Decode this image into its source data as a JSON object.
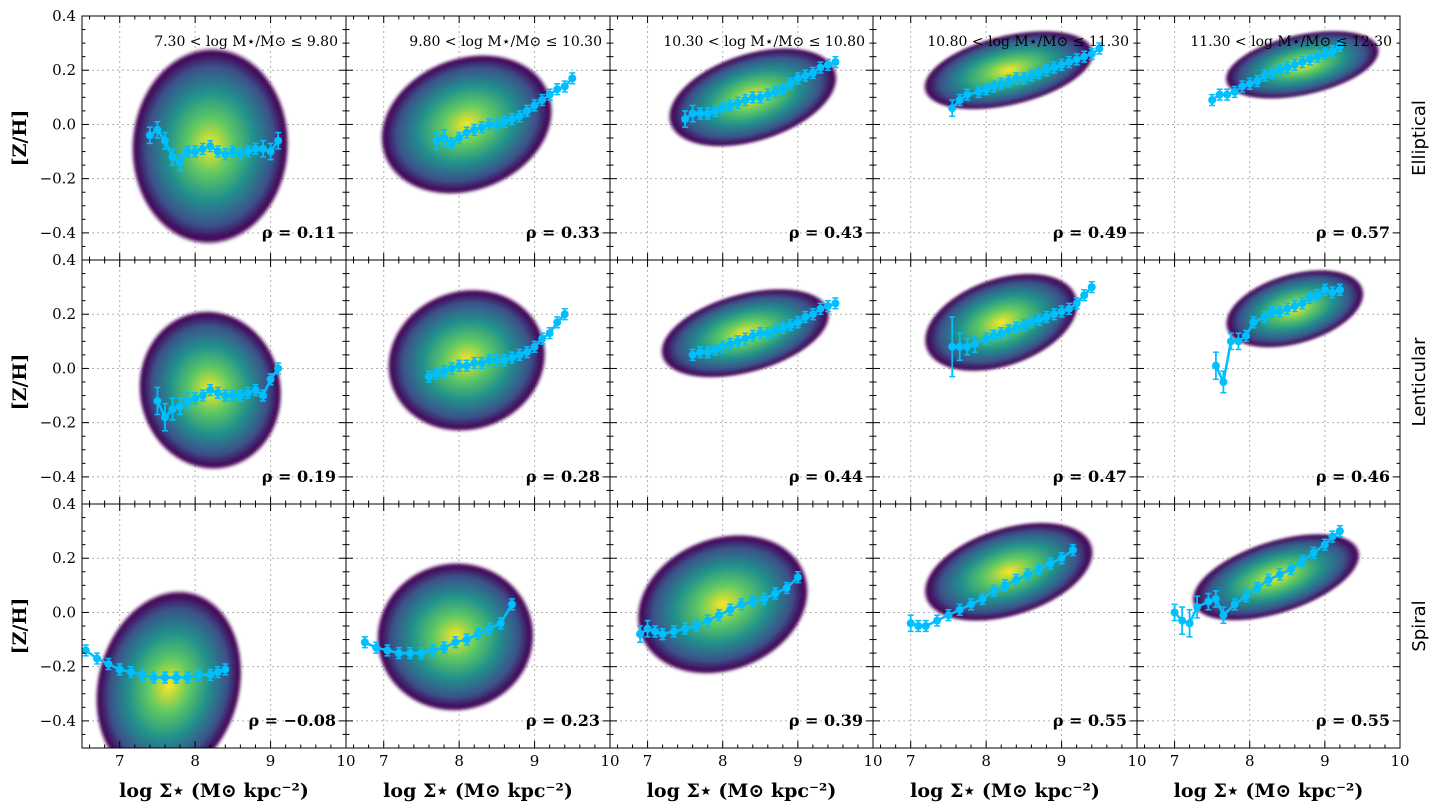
{
  "chart_data": {
    "type": "scatter",
    "figure": {
      "xlabel": "log Σ⋆ (M⊙ kpc⁻²)",
      "ylabel": "[Z/H]",
      "xlim": [
        6.5,
        10
      ],
      "ylim": [
        -0.5,
        0.4
      ],
      "xticks": [
        7,
        8,
        9,
        10
      ],
      "xtick_labels": [
        "7",
        "8",
        "9",
        "10"
      ],
      "yticks": [
        -0.4,
        -0.2,
        0.0,
        0.2,
        0.4
      ],
      "ytick_labels": [
        "−0.4",
        "−0.2",
        "0.0",
        "0.2",
        "0.4"
      ],
      "grid": true,
      "colormap": "viridis",
      "line_color": "#00bfff",
      "density_colors": [
        "#440154",
        "#3b528b",
        "#21918c",
        "#5ec962",
        "#fde725"
      ]
    },
    "mass_bins": [
      "7.30 < log M⋆/M⊙ ≤ 9.80",
      "9.80 < log M⋆/M⊙ ≤ 10.30",
      "10.30 < log M⋆/M⊙ ≤ 10.80",
      "10.80 < log M⋆/M⊙ ≤ 11.30",
      "11.30 < log M⋆/M⊙ ≤ 12.30"
    ],
    "morphologies": [
      "Elliptical",
      "Lenticular",
      "Spiral"
    ],
    "panels": [
      [
        {
          "rho": "ρ = 0.11",
          "density": {
            "cx": 8.2,
            "cy": -0.08,
            "sx": 0.5,
            "sy": 0.16,
            "corr": -0.05
          },
          "x": [
            7.4,
            7.5,
            7.6,
            7.7,
            7.8,
            7.9,
            8.0,
            8.1,
            8.2,
            8.3,
            8.4,
            8.5,
            8.6,
            8.7,
            8.8,
            8.9,
            9.0,
            9.1
          ],
          "y": [
            -0.04,
            -0.02,
            -0.06,
            -0.12,
            -0.14,
            -0.1,
            -0.1,
            -0.09,
            -0.08,
            -0.1,
            -0.11,
            -0.1,
            -0.11,
            -0.1,
            -0.09,
            -0.09,
            -0.1,
            -0.06
          ],
          "err": [
            0.03,
            0.03,
            0.03,
            0.03,
            0.03,
            0.02,
            0.02,
            0.02,
            0.02,
            0.02,
            0.02,
            0.02,
            0.02,
            0.02,
            0.02,
            0.03,
            0.03,
            0.03
          ]
        },
        {
          "rho": "ρ = 0.33",
          "density": {
            "cx": 8.1,
            "cy": 0.0,
            "sx": 0.55,
            "sy": 0.12,
            "corr": 0.5
          },
          "x": [
            7.7,
            7.8,
            7.9,
            8.0,
            8.1,
            8.2,
            8.3,
            8.4,
            8.5,
            8.6,
            8.7,
            8.8,
            8.9,
            9.0,
            9.1,
            9.2,
            9.3,
            9.4,
            9.5
          ],
          "y": [
            -0.06,
            -0.05,
            -0.07,
            -0.05,
            -0.03,
            -0.02,
            -0.01,
            0.0,
            0.0,
            0.01,
            0.02,
            0.03,
            0.05,
            0.07,
            0.09,
            0.11,
            0.13,
            0.14,
            0.17
          ],
          "err": [
            0.03,
            0.03,
            0.02,
            0.02,
            0.02,
            0.02,
            0.02,
            0.02,
            0.02,
            0.02,
            0.02,
            0.02,
            0.02,
            0.02,
            0.02,
            0.02,
            0.02,
            0.02,
            0.02
          ]
        },
        {
          "rho": "ρ = 0.43",
          "density": {
            "cx": 8.4,
            "cy": 0.1,
            "sx": 0.55,
            "sy": 0.08,
            "corr": 0.6
          },
          "x": [
            7.5,
            7.6,
            7.7,
            7.8,
            7.9,
            8.0,
            8.1,
            8.2,
            8.3,
            8.4,
            8.5,
            8.6,
            8.7,
            8.8,
            8.9,
            9.0,
            9.1,
            9.2,
            9.3,
            9.4,
            9.5
          ],
          "y": [
            0.02,
            0.04,
            0.04,
            0.04,
            0.05,
            0.06,
            0.07,
            0.08,
            0.09,
            0.1,
            0.1,
            0.11,
            0.12,
            0.13,
            0.15,
            0.17,
            0.18,
            0.19,
            0.21,
            0.22,
            0.23
          ],
          "err": [
            0.03,
            0.03,
            0.02,
            0.02,
            0.02,
            0.02,
            0.02,
            0.02,
            0.02,
            0.02,
            0.02,
            0.02,
            0.02,
            0.02,
            0.02,
            0.02,
            0.02,
            0.02,
            0.02,
            0.02,
            0.02
          ]
        },
        {
          "rho": "ρ = 0.49",
          "density": {
            "cx": 8.3,
            "cy": 0.2,
            "sx": 0.55,
            "sy": 0.06,
            "corr": 0.6
          },
          "x": [
            7.55,
            7.65,
            7.75,
            7.9,
            8.0,
            8.1,
            8.2,
            8.3,
            8.4,
            8.5,
            8.6,
            8.7,
            8.8,
            8.9,
            9.0,
            9.1,
            9.2,
            9.3,
            9.4,
            9.5
          ],
          "y": [
            0.06,
            0.09,
            0.11,
            0.12,
            0.13,
            0.14,
            0.15,
            0.16,
            0.17,
            0.17,
            0.18,
            0.19,
            0.2,
            0.21,
            0.22,
            0.23,
            0.24,
            0.25,
            0.26,
            0.28
          ],
          "err": [
            0.03,
            0.02,
            0.02,
            0.02,
            0.02,
            0.02,
            0.02,
            0.02,
            0.02,
            0.02,
            0.02,
            0.02,
            0.02,
            0.02,
            0.02,
            0.02,
            0.02,
            0.02,
            0.02,
            0.02
          ]
        },
        {
          "rho": "ρ = 0.57",
          "density": {
            "cx": 8.7,
            "cy": 0.22,
            "sx": 0.5,
            "sy": 0.05,
            "corr": 0.6
          },
          "x": [
            7.5,
            7.6,
            7.7,
            7.8,
            7.9,
            8.0,
            8.1,
            8.2,
            8.3,
            8.4,
            8.5,
            8.6,
            8.7,
            8.8,
            8.9,
            9.0,
            9.1,
            9.2
          ],
          "y": [
            0.09,
            0.11,
            0.11,
            0.12,
            0.14,
            0.15,
            0.16,
            0.18,
            0.19,
            0.2,
            0.21,
            0.22,
            0.23,
            0.24,
            0.25,
            0.26,
            0.27,
            0.29
          ],
          "err": [
            0.02,
            0.02,
            0.02,
            0.02,
            0.02,
            0.02,
            0.02,
            0.02,
            0.02,
            0.02,
            0.02,
            0.02,
            0.02,
            0.02,
            0.02,
            0.02,
            0.02,
            0.02
          ]
        }
      ],
      [
        {
          "rho": "ρ = 0.19",
          "density": {
            "cx": 8.2,
            "cy": -0.08,
            "sx": 0.45,
            "sy": 0.13,
            "corr": 0.2
          },
          "x": [
            7.5,
            7.6,
            7.7,
            7.8,
            7.9,
            8.0,
            8.1,
            8.2,
            8.3,
            8.4,
            8.5,
            8.6,
            8.7,
            8.8,
            8.9,
            9.0,
            9.1
          ],
          "y": [
            -0.12,
            -0.18,
            -0.15,
            -0.14,
            -0.12,
            -0.11,
            -0.1,
            -0.08,
            -0.09,
            -0.1,
            -0.1,
            -0.1,
            -0.09,
            -0.08,
            -0.1,
            -0.04,
            0.0
          ],
          "err": [
            0.05,
            0.05,
            0.04,
            0.03,
            0.03,
            0.02,
            0.02,
            0.02,
            0.02,
            0.02,
            0.02,
            0.02,
            0.02,
            0.02,
            0.02,
            0.02,
            0.02
          ]
        },
        {
          "rho": "ρ = 0.28",
          "density": {
            "cx": 8.1,
            "cy": 0.03,
            "sx": 0.5,
            "sy": 0.12,
            "corr": 0.4
          },
          "x": [
            7.6,
            7.7,
            7.8,
            7.9,
            8.0,
            8.1,
            8.2,
            8.3,
            8.4,
            8.5,
            8.6,
            8.7,
            8.8,
            8.9,
            9.0,
            9.1,
            9.2,
            9.3,
            9.4
          ],
          "y": [
            -0.03,
            -0.02,
            -0.01,
            0.0,
            0.01,
            0.01,
            0.02,
            0.02,
            0.03,
            0.03,
            0.03,
            0.04,
            0.05,
            0.06,
            0.08,
            0.11,
            0.13,
            0.17,
            0.2
          ],
          "err": [
            0.02,
            0.02,
            0.02,
            0.02,
            0.02,
            0.02,
            0.02,
            0.02,
            0.02,
            0.02,
            0.02,
            0.02,
            0.02,
            0.02,
            0.02,
            0.02,
            0.02,
            0.02,
            0.02
          ]
        },
        {
          "rho": "ρ = 0.44",
          "density": {
            "cx": 8.3,
            "cy": 0.13,
            "sx": 0.55,
            "sy": 0.07,
            "corr": 0.6
          },
          "x": [
            7.6,
            7.7,
            7.8,
            7.9,
            8.0,
            8.1,
            8.2,
            8.3,
            8.4,
            8.5,
            8.6,
            8.7,
            8.8,
            8.9,
            9.0,
            9.1,
            9.2,
            9.3,
            9.4,
            9.5
          ],
          "y": [
            0.05,
            0.06,
            0.06,
            0.07,
            0.08,
            0.09,
            0.1,
            0.11,
            0.12,
            0.13,
            0.13,
            0.14,
            0.15,
            0.16,
            0.17,
            0.19,
            0.2,
            0.22,
            0.23,
            0.24
          ],
          "err": [
            0.02,
            0.02,
            0.02,
            0.02,
            0.02,
            0.02,
            0.02,
            0.02,
            0.02,
            0.02,
            0.02,
            0.02,
            0.02,
            0.02,
            0.02,
            0.02,
            0.02,
            0.02,
            0.02,
            0.02
          ]
        },
        {
          "rho": "ρ = 0.47",
          "density": {
            "cx": 8.2,
            "cy": 0.17,
            "sx": 0.5,
            "sy": 0.08,
            "corr": 0.6
          },
          "x": [
            7.55,
            7.65,
            7.75,
            7.85,
            8.0,
            8.1,
            8.2,
            8.3,
            8.4,
            8.5,
            8.6,
            8.7,
            8.8,
            8.9,
            9.0,
            9.1,
            9.2,
            9.3,
            9.4
          ],
          "y": [
            0.08,
            0.08,
            0.08,
            0.09,
            0.11,
            0.12,
            0.13,
            0.14,
            0.15,
            0.16,
            0.17,
            0.18,
            0.19,
            0.2,
            0.21,
            0.22,
            0.24,
            0.27,
            0.3
          ],
          "err": [
            0.11,
            0.05,
            0.03,
            0.03,
            0.02,
            0.02,
            0.02,
            0.02,
            0.02,
            0.02,
            0.02,
            0.02,
            0.02,
            0.02,
            0.02,
            0.02,
            0.02,
            0.02,
            0.02
          ]
        },
        {
          "rho": "ρ = 0.46",
          "density": {
            "cx": 8.6,
            "cy": 0.22,
            "sx": 0.45,
            "sy": 0.06,
            "corr": 0.6
          },
          "x": [
            7.55,
            7.65,
            7.75,
            7.85,
            7.95,
            8.05,
            8.2,
            8.3,
            8.4,
            8.5,
            8.6,
            8.7,
            8.8,
            8.9,
            9.0,
            9.1,
            9.2
          ],
          "y": [
            0.01,
            -0.05,
            0.1,
            0.1,
            0.12,
            0.17,
            0.19,
            0.21,
            0.21,
            0.22,
            0.23,
            0.24,
            0.26,
            0.27,
            0.29,
            0.28,
            0.29
          ],
          "err": [
            0.05,
            0.04,
            0.03,
            0.03,
            0.02,
            0.02,
            0.02,
            0.02,
            0.02,
            0.02,
            0.02,
            0.02,
            0.02,
            0.02,
            0.02,
            0.02,
            0.02
          ]
        }
      ],
      [
        {
          "rho": "ρ = −0.08",
          "density": {
            "cx": 7.65,
            "cy": -0.27,
            "sx": 0.45,
            "sy": 0.16,
            "corr": -0.2
          },
          "x": [
            6.55,
            6.7,
            6.85,
            7.0,
            7.15,
            7.3,
            7.45,
            7.6,
            7.75,
            7.9,
            8.05,
            8.2,
            8.3,
            8.4
          ],
          "y": [
            -0.14,
            -0.17,
            -0.19,
            -0.21,
            -0.22,
            -0.23,
            -0.24,
            -0.24,
            -0.24,
            -0.24,
            -0.23,
            -0.23,
            -0.22,
            -0.21
          ],
          "err": [
            0.02,
            0.02,
            0.02,
            0.02,
            0.02,
            0.02,
            0.02,
            0.02,
            0.02,
            0.02,
            0.02,
            0.02,
            0.02,
            0.02
          ]
        },
        {
          "rho": "ρ = 0.23",
          "density": {
            "cx": 7.95,
            "cy": -0.09,
            "sx": 0.5,
            "sy": 0.12,
            "corr": 0.2
          },
          "x": [
            6.75,
            6.9,
            7.05,
            7.2,
            7.35,
            7.5,
            7.65,
            7.8,
            7.95,
            8.1,
            8.25,
            8.4,
            8.55,
            8.7
          ],
          "y": [
            -0.11,
            -0.13,
            -0.14,
            -0.15,
            -0.15,
            -0.15,
            -0.14,
            -0.13,
            -0.11,
            -0.1,
            -0.08,
            -0.06,
            -0.04,
            0.03
          ],
          "err": [
            0.02,
            0.02,
            0.02,
            0.02,
            0.02,
            0.02,
            0.02,
            0.02,
            0.02,
            0.02,
            0.02,
            0.02,
            0.02,
            0.02
          ]
        },
        {
          "rho": "ρ = 0.39",
          "density": {
            "cx": 8.0,
            "cy": 0.03,
            "sx": 0.55,
            "sy": 0.12,
            "corr": 0.5
          },
          "x": [
            6.9,
            7.0,
            7.1,
            7.2,
            7.35,
            7.5,
            7.65,
            7.8,
            7.95,
            8.1,
            8.25,
            8.4,
            8.55,
            8.7,
            8.85,
            9.0
          ],
          "y": [
            -0.08,
            -0.06,
            -0.07,
            -0.08,
            -0.07,
            -0.06,
            -0.05,
            -0.03,
            -0.01,
            0.01,
            0.03,
            0.04,
            0.05,
            0.07,
            0.09,
            0.13
          ],
          "err": [
            0.03,
            0.03,
            0.02,
            0.02,
            0.02,
            0.02,
            0.02,
            0.02,
            0.02,
            0.02,
            0.02,
            0.02,
            0.02,
            0.02,
            0.02,
            0.02
          ]
        },
        {
          "rho": "ρ = 0.55",
          "density": {
            "cx": 8.3,
            "cy": 0.15,
            "sx": 0.55,
            "sy": 0.08,
            "corr": 0.6
          },
          "x": [
            7.0,
            7.1,
            7.2,
            7.35,
            7.5,
            7.65,
            7.8,
            7.95,
            8.1,
            8.25,
            8.4,
            8.55,
            8.7,
            8.85,
            9.0,
            9.15
          ],
          "y": [
            -0.04,
            -0.05,
            -0.05,
            -0.03,
            -0.01,
            0.01,
            0.03,
            0.05,
            0.08,
            0.1,
            0.12,
            0.14,
            0.16,
            0.18,
            0.2,
            0.23
          ],
          "err": [
            0.03,
            0.02,
            0.02,
            0.02,
            0.02,
            0.02,
            0.02,
            0.02,
            0.02,
            0.02,
            0.02,
            0.02,
            0.02,
            0.02,
            0.02,
            0.02
          ]
        },
        {
          "rho": "ρ = 0.55",
          "density": {
            "cx": 8.35,
            "cy": 0.13,
            "sx": 0.55,
            "sy": 0.07,
            "corr": 0.7
          },
          "x": [
            7.0,
            7.1,
            7.2,
            7.3,
            7.45,
            7.55,
            7.65,
            7.8,
            7.95,
            8.1,
            8.25,
            8.4,
            8.55,
            8.7,
            8.85,
            9.0,
            9.1,
            9.2
          ],
          "y": [
            0.0,
            -0.03,
            -0.04,
            0.02,
            0.04,
            0.05,
            -0.01,
            0.03,
            0.06,
            0.09,
            0.12,
            0.14,
            0.16,
            0.19,
            0.22,
            0.25,
            0.28,
            0.3
          ],
          "err": [
            0.03,
            0.05,
            0.05,
            0.04,
            0.03,
            0.03,
            0.03,
            0.02,
            0.02,
            0.02,
            0.02,
            0.02,
            0.02,
            0.02,
            0.02,
            0.02,
            0.02,
            0.02
          ]
        }
      ]
    ]
  }
}
